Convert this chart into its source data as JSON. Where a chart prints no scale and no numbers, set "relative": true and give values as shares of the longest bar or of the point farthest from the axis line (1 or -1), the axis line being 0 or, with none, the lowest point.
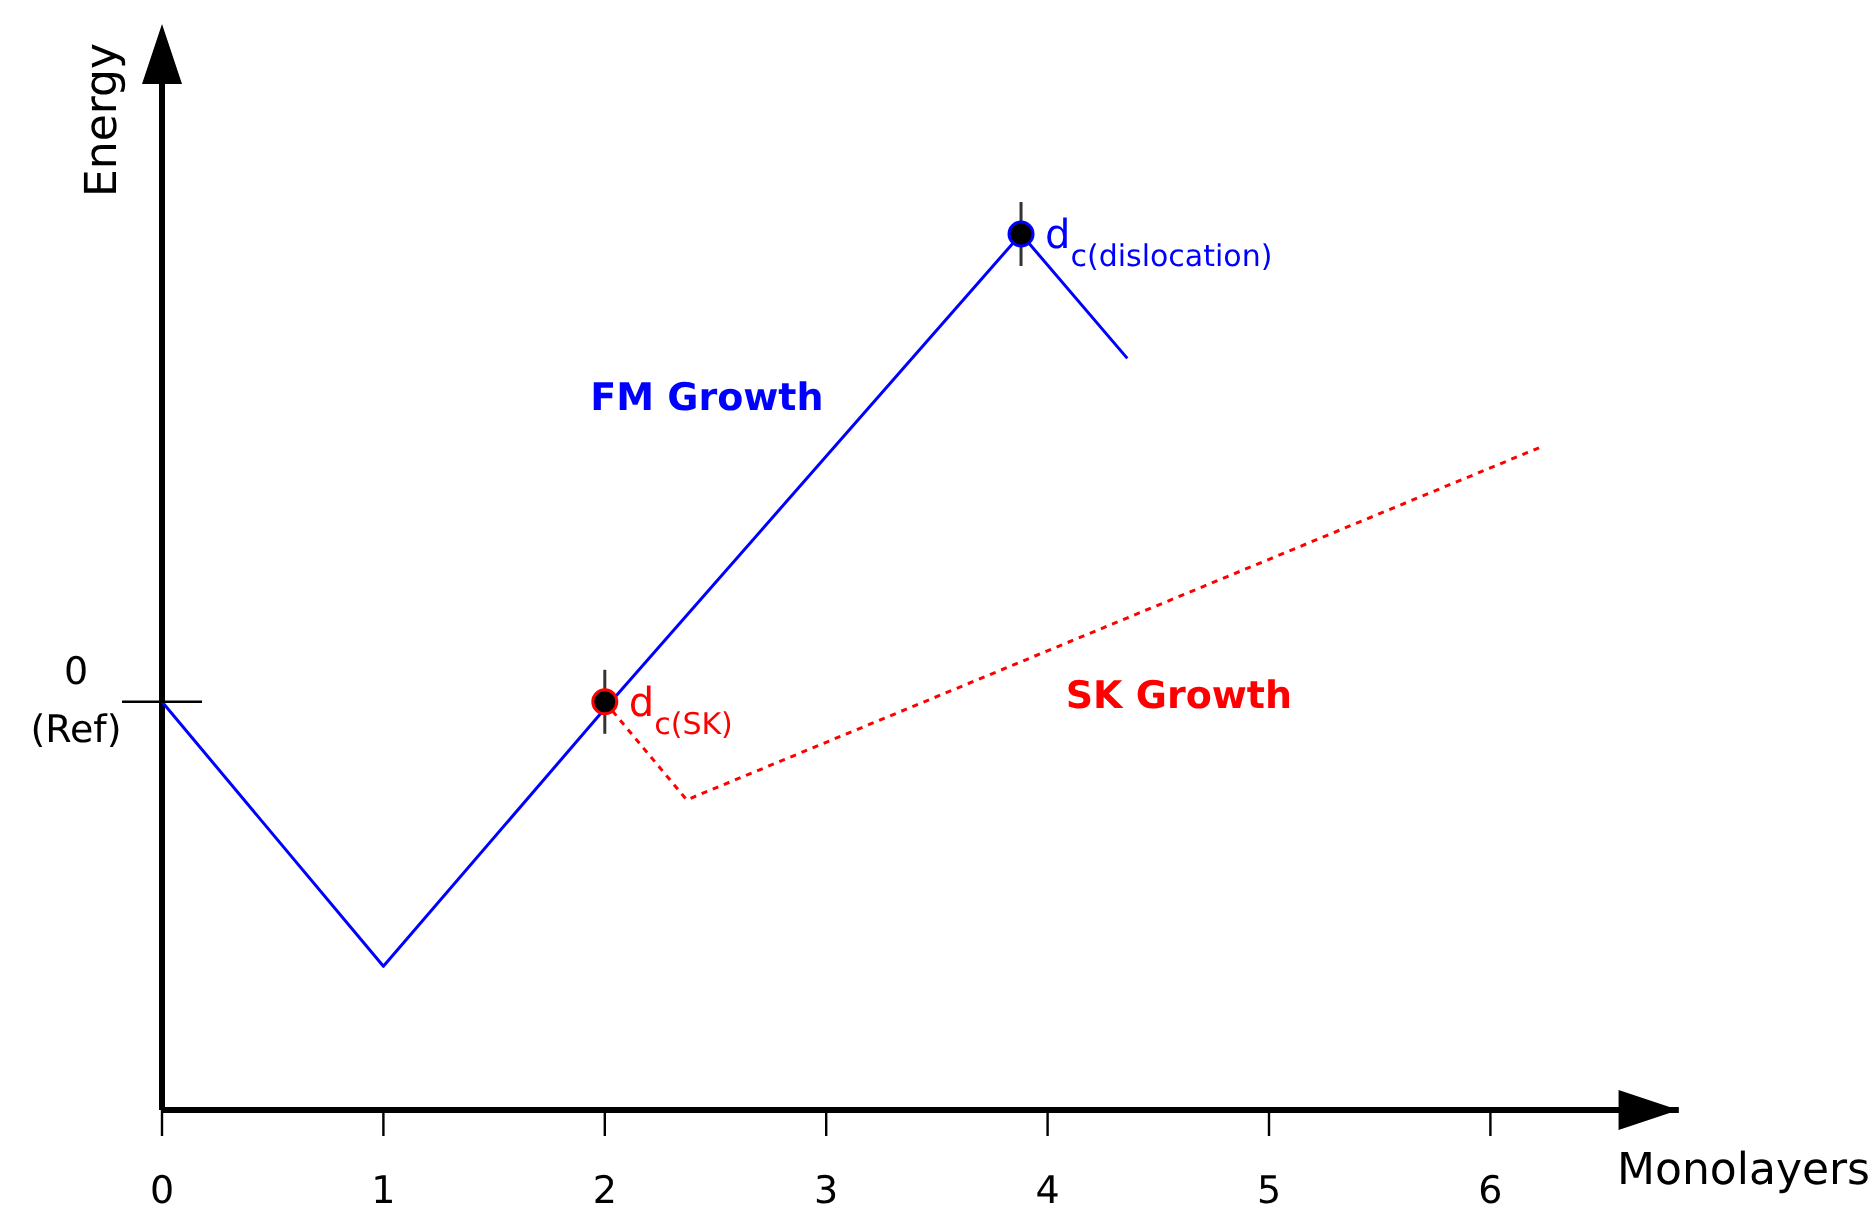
{
  "chart_data": {
    "type": "line",
    "relative": true,
    "xlabel": "Monolayers",
    "ylabel": "Energy",
    "xlim": [
      0,
      6.85
    ],
    "xticks": [
      0,
      1,
      2,
      3,
      4,
      5,
      6
    ],
    "grid": false,
    "legend": false,
    "series": [
      {
        "name": "FM Growth",
        "color": "#0000ff",
        "x": [
          0,
          1,
          2,
          3.88,
          4.36
        ],
        "values": [
          0.466,
          0.164,
          0.458,
          1.0,
          0.858
        ],
        "line_style": "solid"
      },
      {
        "name": "SK Growth",
        "color": "#ff0000",
        "x": [
          2,
          2.37,
          6.22
        ],
        "values": [
          0.466,
          0.354,
          0.756
        ],
        "line_style": "dotted"
      },
      {
        "type": "scatter",
        "color": "#000000",
        "x": [
          2,
          3.88
        ],
        "values": [
          0.466,
          1.0
        ],
        "marker": "circle"
      }
    ],
    "annotations": [
      {
        "text": "0 (Ref)",
        "x": 0,
        "y": 0.466
      },
      {
        "text": "d$_{c(SK)}$",
        "x": 2,
        "y": 0.466
      },
      {
        "text": "d$_{c(dislocation)}$",
        "x": 3.88,
        "y": 1.0
      }
    ]
  }
}
